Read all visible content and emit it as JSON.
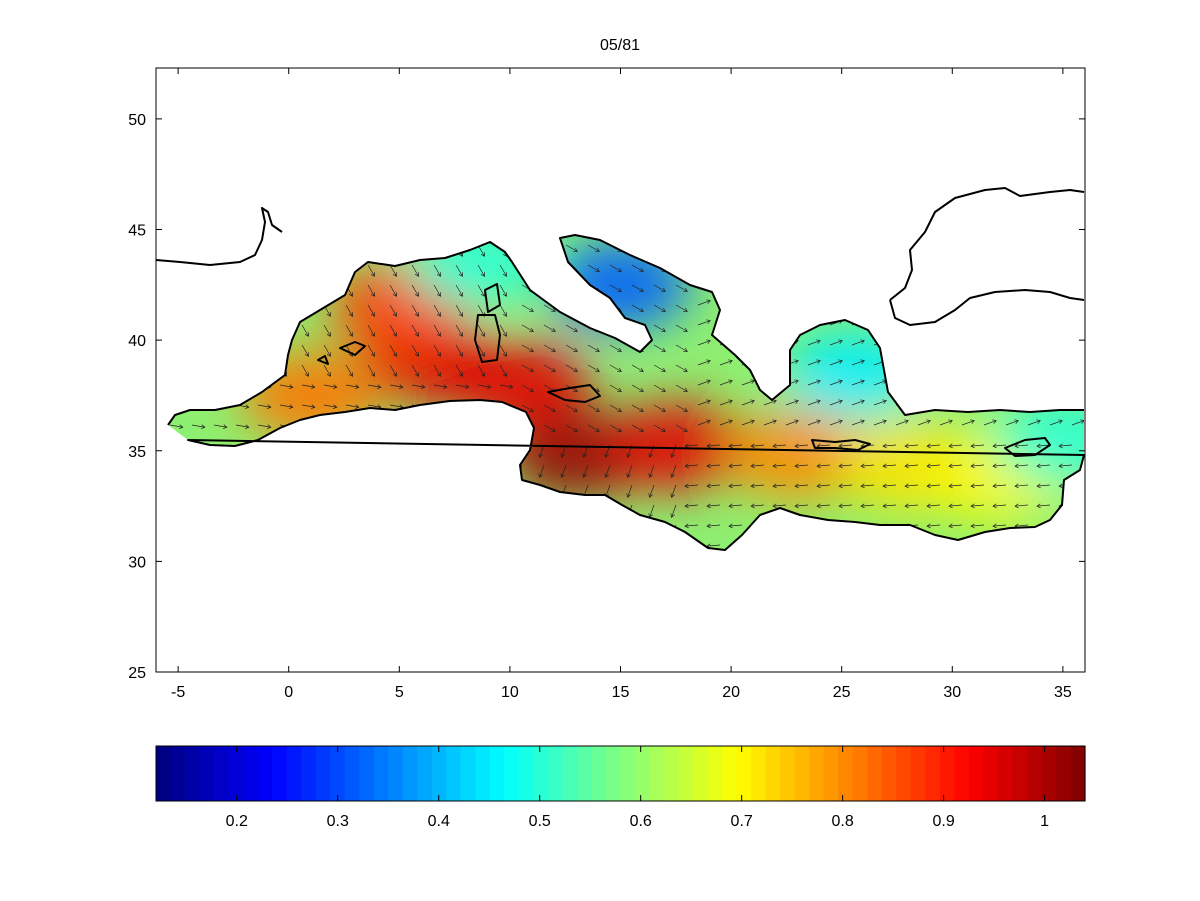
{
  "figure": {
    "title": "05/81"
  },
  "map": {
    "type": "heatmap",
    "x_axis": {
      "ticks": [
        -5,
        0,
        5,
        10,
        15,
        20,
        25,
        30,
        35
      ],
      "range": [
        -6,
        36
      ]
    },
    "y_axis": {
      "ticks": [
        25,
        30,
        35,
        40,
        45,
        50
      ],
      "range": [
        25,
        52.3
      ]
    },
    "overlay": "vector-arrows",
    "coastline": "black-line"
  },
  "colorbar": {
    "colormap": "jet",
    "range": [
      0.12,
      1.04
    ],
    "ticks": [
      0.2,
      0.3,
      0.4,
      0.5,
      0.6,
      0.7,
      0.8,
      0.9,
      1
    ],
    "tick_labels": [
      "0.2",
      "0.3",
      "0.4",
      "0.5",
      "0.6",
      "0.7",
      "0.8",
      "0.9",
      "1"
    ]
  },
  "chart_data": {
    "type": "heatmap",
    "title": "05/81",
    "xlim": [
      -6,
      36
    ],
    "ylim": [
      25,
      52.3
    ],
    "xticks": [
      -5,
      0,
      5,
      10,
      15,
      20,
      25,
      30,
      35
    ],
    "yticks": [
      25,
      30,
      35,
      40,
      45,
      50
    ],
    "color_range": [
      0.12,
      1.04
    ],
    "hotspots": [
      {
        "x": 13,
        "y": 34.8,
        "value": 1.02
      },
      {
        "x": 17.5,
        "y": 35.2,
        "value": 0.95
      },
      {
        "x": 6.5,
        "y": 39,
        "value": 0.95
      },
      {
        "x": 10.5,
        "y": 38,
        "value": 0.95
      },
      {
        "x": 5,
        "y": 41.5,
        "value": 0.87
      },
      {
        "x": 1,
        "y": 37.5,
        "value": 0.82
      },
      {
        "x": 23,
        "y": 34.8,
        "value": 0.8
      },
      {
        "x": 28,
        "y": 34.3,
        "value": 0.72
      },
      {
        "x": 32,
        "y": 33.8,
        "value": 0.7
      },
      {
        "x": 15,
        "y": 42.5,
        "value": 0.32
      },
      {
        "x": 25.5,
        "y": 38.5,
        "value": 0.45
      },
      {
        "x": 8.5,
        "y": 43.5,
        "value": 0.5
      },
      {
        "x": 35,
        "y": 35.5,
        "value": 0.5
      }
    ]
  }
}
